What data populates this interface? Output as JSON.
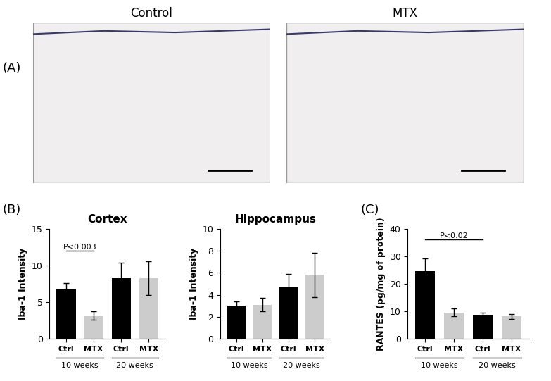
{
  "panel_labels": [
    "(A)",
    "(B)",
    "(C)"
  ],
  "images": [
    {
      "title": "Control"
    },
    {
      "title": "MTX"
    }
  ],
  "chart_data": [
    {
      "type": "bar",
      "title": "Cortex",
      "y_label": "Iba-1 Intensity",
      "categories": [
        "Ctrl",
        "MTX",
        "Ctrl",
        "MTX"
      ],
      "groups": [
        "10 weeks",
        "20 weeks"
      ],
      "values": [
        6.8,
        3.2,
        8.3,
        8.3
      ],
      "errors": [
        0.8,
        0.6,
        2.1,
        2.3
      ],
      "colors": [
        "#000000",
        "#cccccc",
        "#000000",
        "#cccccc"
      ],
      "ylim": [
        0,
        15
      ],
      "yticks": [
        0,
        5,
        10,
        15
      ],
      "annotations": [
        {
          "text": "P<0.003",
          "from": 0,
          "to": 1,
          "y": 12
        }
      ]
    },
    {
      "type": "bar",
      "title": "Hippocampus",
      "y_label": "Iba-1 Intensity",
      "categories": [
        "Ctrl",
        "MTX",
        "Ctrl",
        "MTX"
      ],
      "groups": [
        "10 weeks",
        "20 weeks"
      ],
      "values": [
        3.0,
        3.1,
        4.7,
        5.8
      ],
      "errors": [
        0.4,
        0.6,
        1.2,
        2.0
      ],
      "colors": [
        "#000000",
        "#cccccc",
        "#000000",
        "#cccccc"
      ],
      "ylim": [
        0,
        10
      ],
      "yticks": [
        0,
        2,
        4,
        6,
        8,
        10
      ]
    },
    {
      "type": "bar",
      "y_label": "RANTES (pg/mg of protein)",
      "categories": [
        "Ctrl",
        "MTX",
        "Ctrl",
        "MTX"
      ],
      "groups": [
        "10 weeks",
        "20 weeks"
      ],
      "values": [
        24.6,
        9.6,
        8.8,
        8.2
      ],
      "errors": [
        4.6,
        1.4,
        0.8,
        0.9
      ],
      "colors": [
        "#000000",
        "#cccccc",
        "#000000",
        "#cccccc"
      ],
      "ylim": [
        0,
        40
      ],
      "yticks": [
        0,
        10,
        20,
        30,
        40
      ],
      "annotations": [
        {
          "text": "P<0.02",
          "from": 0,
          "to": 2,
          "y": 36
        }
      ]
    }
  ]
}
